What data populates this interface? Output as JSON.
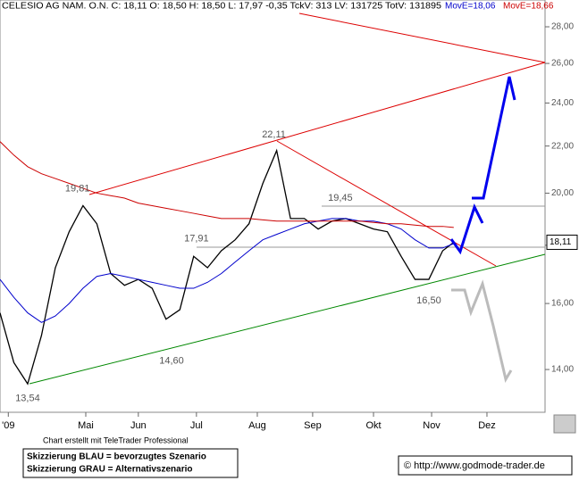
{
  "chart_data": {
    "type": "line",
    "title": "CELESIO AG NAM. O.N. C: 18,11 O: 18,50 H: 18,50 L: 17,97 -0,35 TckV: 313 LV: 131725 TotV: 131895",
    "log_scale": true,
    "xlim": [
      0,
      197
    ],
    "xticks": [
      {
        "value": 3,
        "label": "'09"
      },
      {
        "value": 31,
        "label": "Mai"
      },
      {
        "value": 50,
        "label": "Jun"
      },
      {
        "value": 71,
        "label": "Jul"
      },
      {
        "value": 93,
        "label": "Aug"
      },
      {
        "value": 113,
        "label": "Sep"
      },
      {
        "value": 135,
        "label": "Okt"
      },
      {
        "value": 156,
        "label": "Nov"
      },
      {
        "value": 176,
        "label": "Dez"
      }
    ],
    "ylim": [
      12.84,
      29.03
    ],
    "yticks": [
      {
        "value": 14,
        "label": "14,00"
      },
      {
        "value": 16,
        "label": "16,00"
      },
      {
        "value": 18,
        "label": "18,00"
      },
      {
        "value": 20,
        "label": "20,00"
      },
      {
        "value": 22,
        "label": "22,00"
      },
      {
        "value": 24,
        "label": "24,00"
      },
      {
        "value": 26,
        "label": "26,00"
      },
      {
        "value": 28,
        "label": "28,00"
      }
    ],
    "x": [
      0,
      5,
      10,
      15,
      20,
      25,
      30,
      35,
      40,
      45,
      50,
      55,
      60,
      65,
      70,
      75,
      80,
      85,
      90,
      95,
      100,
      105,
      110,
      115,
      120,
      125,
      130,
      135,
      140,
      145,
      150,
      155,
      160,
      164
    ],
    "series": [
      {
        "color": "#000000",
        "values": [
          15.7,
          14.2,
          13.6,
          15.0,
          17.2,
          18.5,
          19.5,
          18.8,
          17.0,
          16.6,
          16.8,
          16.5,
          15.5,
          15.8,
          17.6,
          17.2,
          17.8,
          18.2,
          18.8,
          20.4,
          21.8,
          19.0,
          19.0,
          18.6,
          18.9,
          19.0,
          18.8,
          18.6,
          18.5,
          17.6,
          16.8,
          16.8,
          17.8,
          18.11
        ]
      },
      {
        "name": "MovE=18,06",
        "color": "#0000cc",
        "values": [
          16.8,
          16.2,
          15.7,
          15.4,
          15.6,
          16.0,
          16.5,
          16.9,
          17.0,
          16.9,
          16.8,
          16.7,
          16.6,
          16.5,
          16.5,
          16.7,
          17.0,
          17.4,
          17.8,
          18.2,
          18.4,
          18.6,
          18.8,
          18.9,
          19.0,
          19.0,
          18.9,
          18.9,
          18.8,
          18.6,
          18.2,
          17.9,
          17.9,
          18.06
        ]
      },
      {
        "name": "MovE=18,66",
        "color": "#cc0000",
        "values": [
          22.2,
          21.6,
          21.1,
          20.8,
          20.6,
          20.4,
          20.2,
          20.0,
          19.9,
          19.8,
          19.6,
          19.5,
          19.4,
          19.3,
          19.2,
          19.1,
          19.0,
          19.0,
          19.0,
          18.95,
          18.9,
          18.9,
          18.9,
          18.9,
          18.9,
          18.9,
          18.9,
          18.85,
          18.8,
          18.8,
          18.75,
          18.7,
          18.7,
          18.66
        ]
      }
    ],
    "annotations": [
      {
        "x": 10,
        "value": 13.54,
        "label": "13,54"
      },
      {
        "x": 28,
        "value": 19.81,
        "label": "19,81"
      },
      {
        "x": 62,
        "value": 14.6,
        "label": "14,60"
      },
      {
        "x": 71,
        "value": 17.91,
        "label": "17,91"
      },
      {
        "x": 99,
        "value": 22.11,
        "label": "22,11"
      },
      {
        "x": 123,
        "value": 19.45,
        "label": "19,45"
      },
      {
        "x": 155,
        "value": 16.5,
        "label": "16,50"
      }
    ],
    "last_price": {
      "value": 18.11,
      "label": "18,11"
    },
    "footer": "Chart erstellt mit TeleTrader Professional",
    "legend_box": [
      "Skizzierung BLAU = bevorzugtes Szenario",
      "Skizzierung GRAU = Alternativszenario"
    ],
    "source": "© http://www.godmode-trader.de"
  }
}
